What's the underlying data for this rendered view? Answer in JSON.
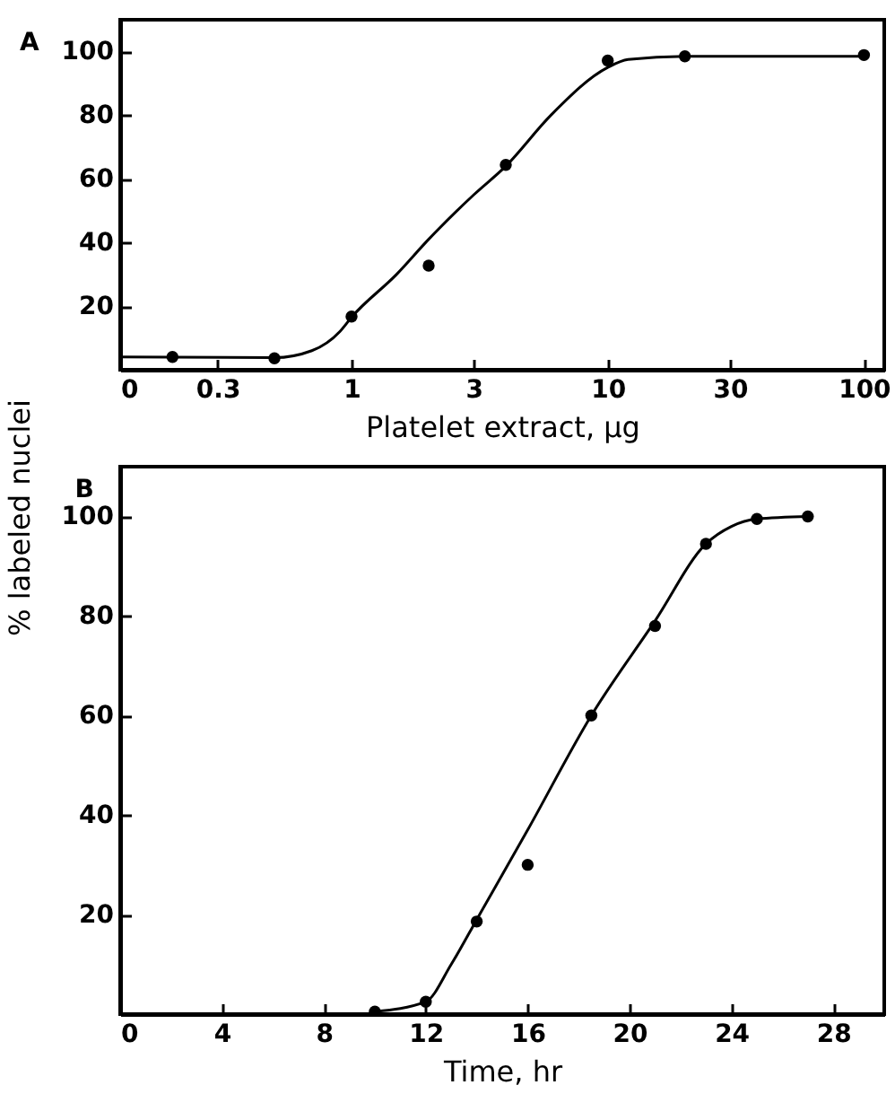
{
  "chart_data": [
    {
      "type": "scatter",
      "title": "A",
      "xlabel": "Platelet extract, μg",
      "ylabel": "% labeled nuclei",
      "log": "x",
      "xlim": [
        0.125,
        120
      ],
      "xticks": [
        {
          "value": 0.125,
          "label": "0"
        },
        0.3,
        1,
        3,
        10,
        30,
        100
      ],
      "ylim": [
        0,
        110
      ],
      "yticks": [
        20,
        40,
        60,
        80,
        100
      ],
      "series": [
        {
          "type": "line",
          "color": "#000000",
          "marker": "none",
          "x": [
            0.125,
            0.5,
            0.7,
            0.9,
            1,
            1.5,
            2,
            3,
            4,
            6,
            10,
            12,
            20,
            100
          ],
          "values": [
            4,
            3.8,
            6,
            12,
            16.5,
            30,
            41,
            55,
            64,
            80,
            95,
            97.5,
            98.5,
            98.5
          ]
        },
        {
          "type": "scatter",
          "color": "#000000",
          "marker": "circle",
          "x": [
            0.2,
            0.5,
            1,
            2,
            4,
            10,
            20,
            100
          ],
          "values": [
            4,
            3.6,
            16.7,
            32.7,
            64.4,
            97.2,
            98.5,
            98.9
          ]
        }
      ]
    },
    {
      "type": "scatter",
      "title": "B",
      "xlabel": "Time, hr",
      "xlim": [
        0,
        30
      ],
      "xticks": [
        0,
        4,
        8,
        12,
        16,
        20,
        24,
        28
      ],
      "ylim": [
        0,
        110
      ],
      "yticks": [
        20,
        40,
        60,
        80,
        100
      ],
      "series": [
        {
          "type": "line",
          "color": "#000000",
          "marker": "none",
          "x": [
            10,
            12,
            13,
            14,
            16,
            18.5,
            21,
            23,
            24,
            25,
            27
          ],
          "values": [
            0.5,
            2.5,
            10,
            19,
            37,
            60,
            79,
            94.5,
            98,
            99.5,
            100
          ]
        },
        {
          "type": "scatter",
          "color": "#000000",
          "marker": "circle",
          "x": [
            10,
            12,
            14,
            16,
            18.5,
            21,
            23,
            25,
            27
          ],
          "values": [
            0.5,
            2.5,
            18.6,
            30,
            60,
            78,
            94.5,
            99.5,
            100
          ]
        }
      ]
    }
  ]
}
